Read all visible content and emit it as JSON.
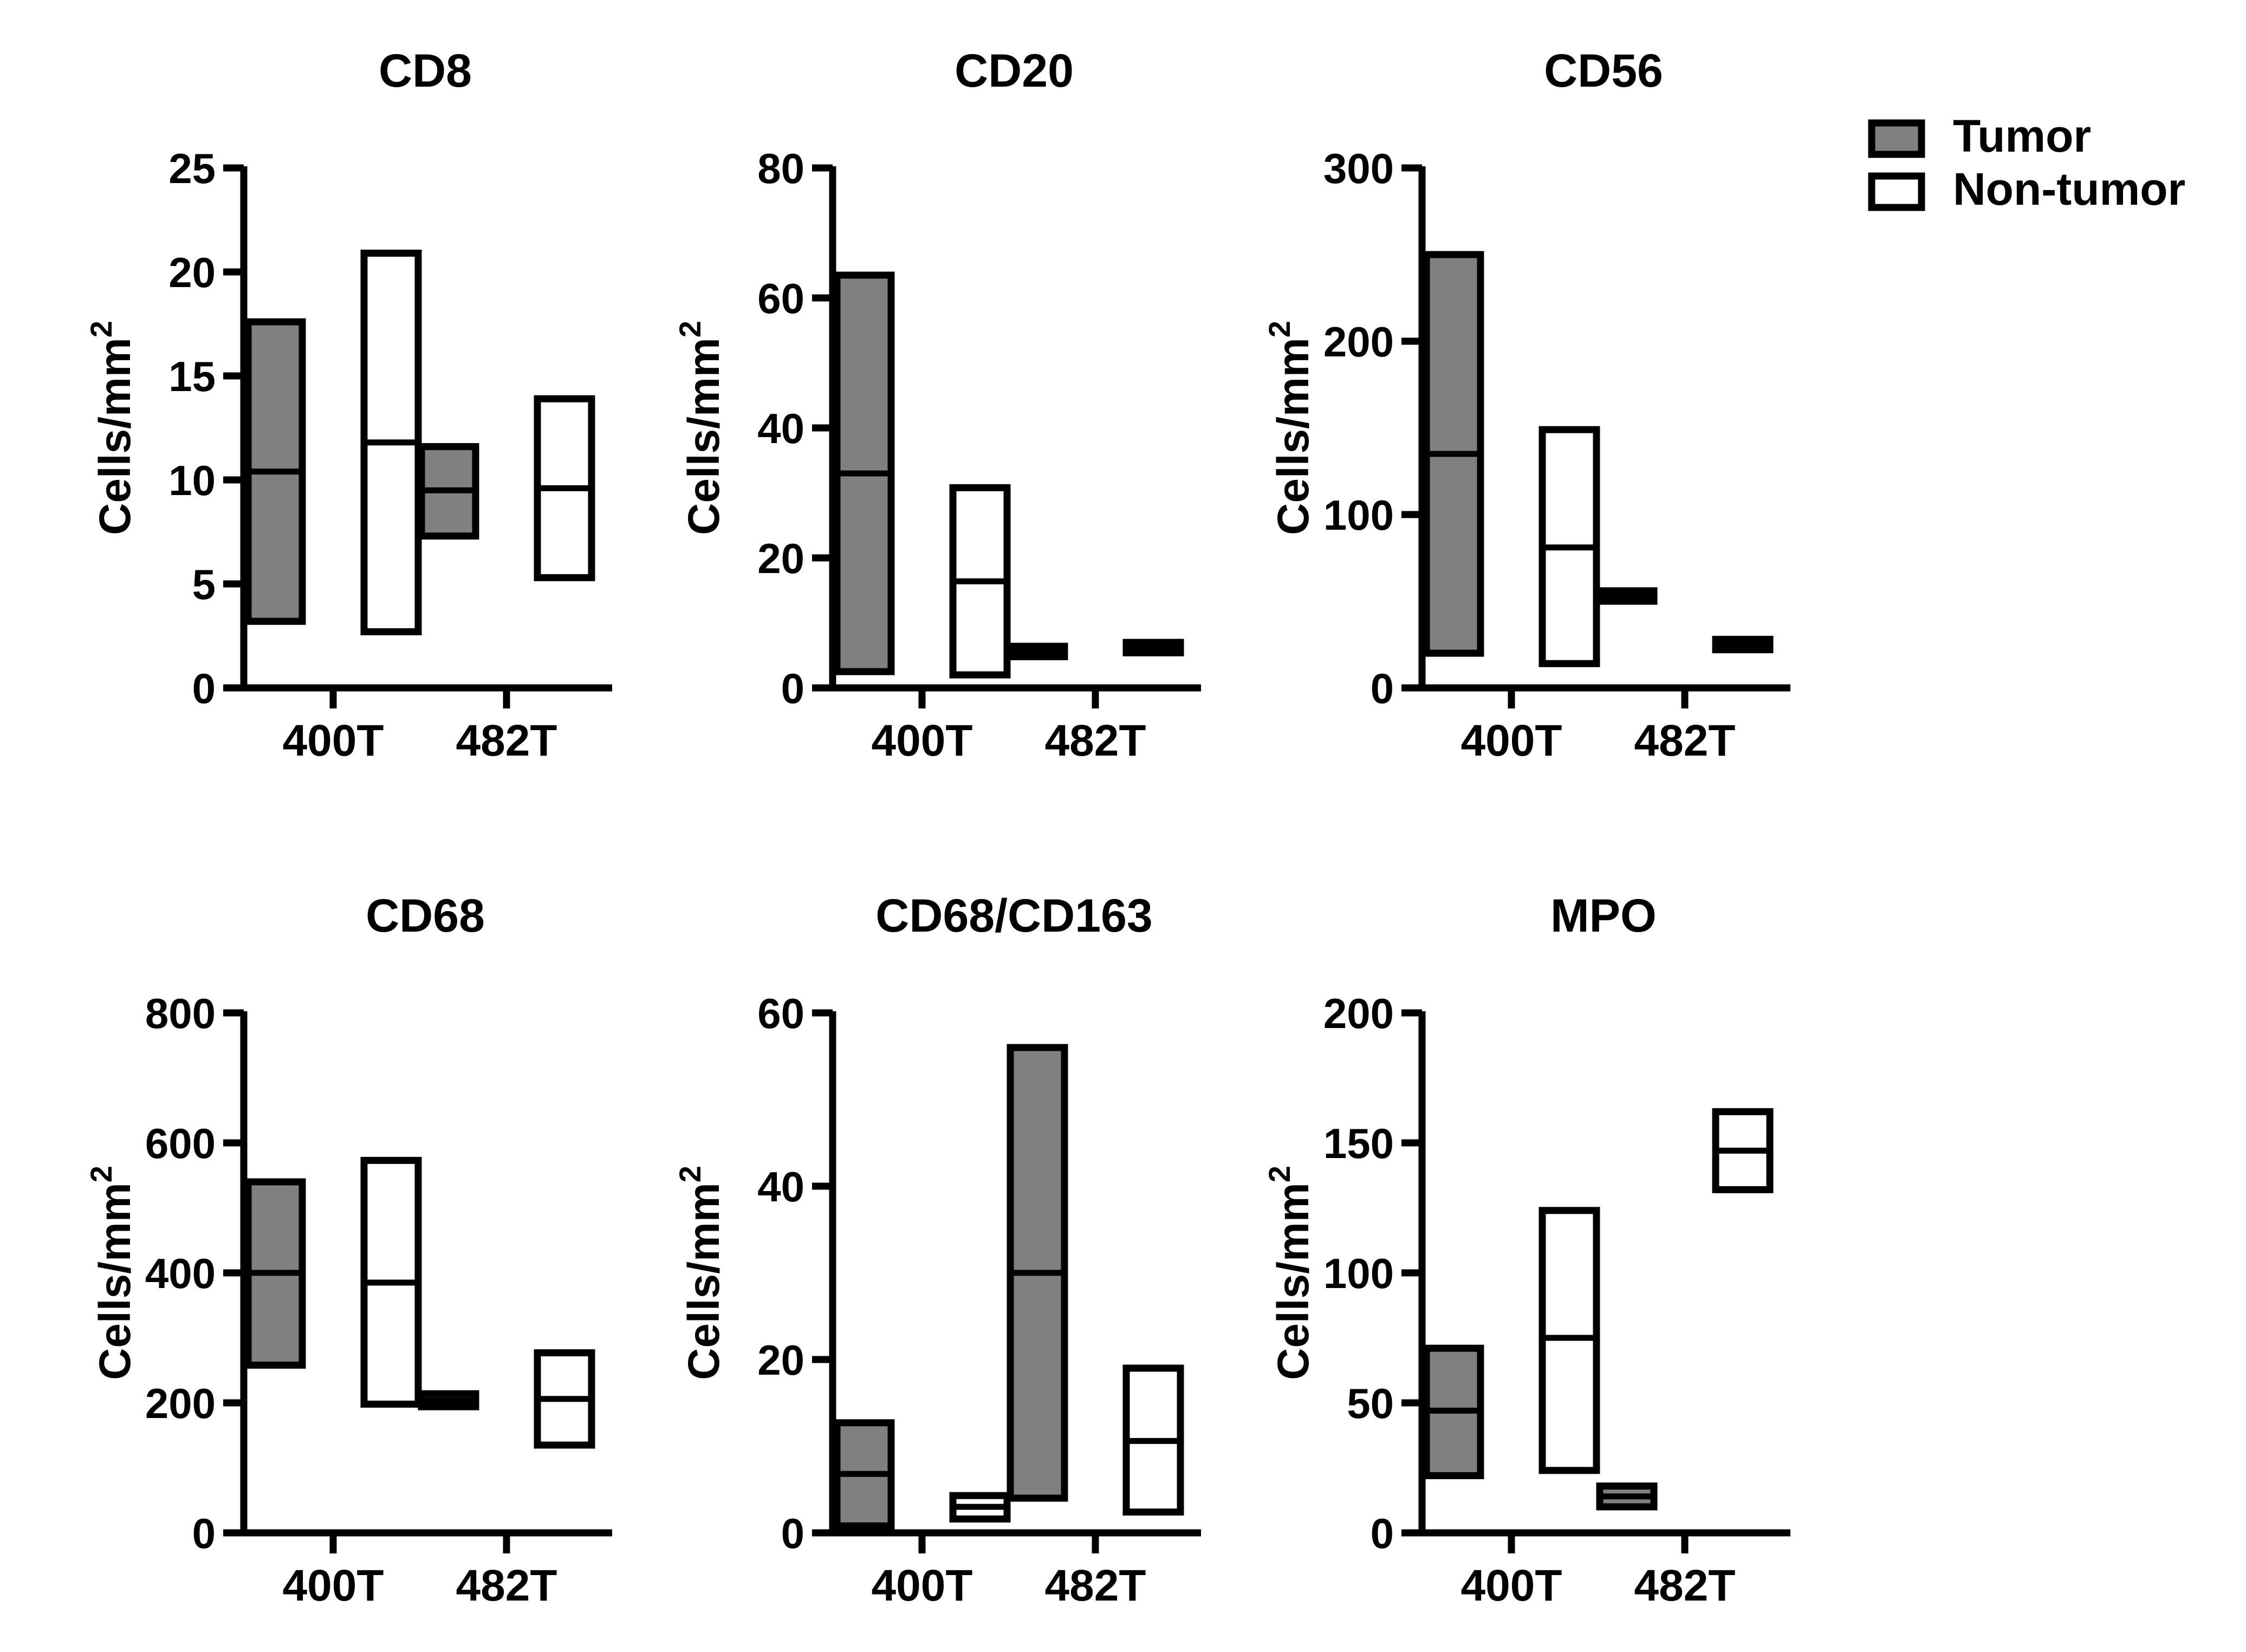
{
  "figure": {
    "legend": {
      "placement": "top-right",
      "items": [
        {
          "name": "Tumor",
          "fill": "#808080"
        },
        {
          "name": "Non-tumor",
          "fill": "#ffffff"
        }
      ]
    },
    "stroke_color": "#000000"
  },
  "chart_data": [
    {
      "type": "bar",
      "title": "CD8",
      "ylabel": "Cells/mm",
      "ylabel_superscript": "2",
      "ylim": [
        0,
        25
      ],
      "yticks": [
        "0",
        "5",
        "10",
        "15",
        "20",
        "25"
      ],
      "categories": [
        "400T",
        "482T"
      ],
      "series": [
        {
          "name": "Tumor",
          "ranges": [
            {
              "min": 3.2,
              "max": 17.6,
              "mean": 10.4
            },
            {
              "min": 7.3,
              "max": 11.6,
              "mean": 9.5
            }
          ]
        },
        {
          "name": "Non-tumor",
          "ranges": [
            {
              "min": 2.7,
              "max": 20.9,
              "mean": 11.8
            },
            {
              "min": 5.3,
              "max": 13.9,
              "mean": 9.6
            }
          ]
        }
      ]
    },
    {
      "type": "bar",
      "title": "CD20",
      "ylabel": "Cells/mm",
      "ylabel_superscript": "2",
      "ylim": [
        0,
        80
      ],
      "yticks": [
        "0",
        "20",
        "40",
        "60",
        "80"
      ],
      "categories": [
        "400T",
        "482T"
      ],
      "series": [
        {
          "name": "Tumor",
          "ranges": [
            {
              "min": 2.5,
              "max": 63.5,
              "mean": 33.0
            },
            {
              "min": 4.8,
              "max": 6.4,
              "mean": 5.6
            }
          ]
        },
        {
          "name": "Non-tumor",
          "ranges": [
            {
              "min": 2.0,
              "max": 30.8,
              "mean": 16.4
            },
            {
              "min": 5.4,
              "max": 7.0,
              "mean": 6.2
            }
          ]
        }
      ]
    },
    {
      "type": "bar",
      "title": "CD56",
      "ylabel": "Cells/mm",
      "ylabel_superscript": "2",
      "ylim": [
        0,
        300
      ],
      "yticks": [
        "0",
        "100",
        "200",
        "300"
      ],
      "categories": [
        "400T",
        "482T"
      ],
      "series": [
        {
          "name": "Tumor",
          "ranges": [
            {
              "min": 20,
              "max": 250,
              "mean": 135
            },
            {
              "min": 50,
              "max": 56,
              "mean": 53
            }
          ]
        },
        {
          "name": "Non-tumor",
          "ranges": [
            {
              "min": 14,
              "max": 149,
              "mean": 81
            },
            {
              "min": 22,
              "max": 28,
              "mean": 25
            }
          ]
        }
      ]
    },
    {
      "type": "bar",
      "title": "CD68",
      "ylabel": "Cells/mm",
      "ylabel_superscript": "2",
      "ylim": [
        0,
        800
      ],
      "yticks": [
        "0",
        "200",
        "400",
        "600",
        "800"
      ],
      "categories": [
        "400T",
        "482T"
      ],
      "series": [
        {
          "name": "Tumor",
          "ranges": [
            {
              "min": 258,
              "max": 540,
              "mean": 400
            },
            {
              "min": 194,
              "max": 214,
              "mean": 204
            }
          ]
        },
        {
          "name": "Non-tumor",
          "ranges": [
            {
              "min": 198,
              "max": 573,
              "mean": 385
            },
            {
              "min": 135,
              "max": 277,
              "mean": 206
            }
          ]
        }
      ]
    },
    {
      "type": "bar",
      "title": "CD68/CD163",
      "ylabel": "Cells/mm",
      "ylabel_superscript": "2",
      "ylim": [
        0,
        60
      ],
      "yticks": [
        "0",
        "20",
        "40",
        "60"
      ],
      "categories": [
        "400T",
        "482T"
      ],
      "series": [
        {
          "name": "Tumor",
          "ranges": [
            {
              "min": 0.8,
              "max": 12.7,
              "mean": 6.8
            },
            {
              "min": 4.0,
              "max": 56.0,
              "mean": 30.0
            }
          ]
        },
        {
          "name": "Non-tumor",
          "ranges": [
            {
              "min": 1.6,
              "max": 4.3,
              "mean": 3.0
            },
            {
              "min": 2.4,
              "max": 19.0,
              "mean": 10.6
            }
          ]
        }
      ]
    },
    {
      "type": "bar",
      "title": "MPO",
      "ylabel": "Cells/mm",
      "ylabel_superscript": "2",
      "ylim": [
        0,
        200
      ],
      "yticks": [
        "0",
        "50",
        "100",
        "150",
        "200"
      ],
      "categories": [
        "400T",
        "482T"
      ],
      "series": [
        {
          "name": "Tumor",
          "ranges": [
            {
              "min": 22,
              "max": 71,
              "mean": 47
            },
            {
              "min": 10,
              "max": 18,
              "mean": 14
            }
          ]
        },
        {
          "name": "Non-tumor",
          "ranges": [
            {
              "min": 24,
              "max": 124,
              "mean": 75
            },
            {
              "min": 132,
              "max": 162,
              "mean": 147
            }
          ]
        }
      ]
    }
  ]
}
